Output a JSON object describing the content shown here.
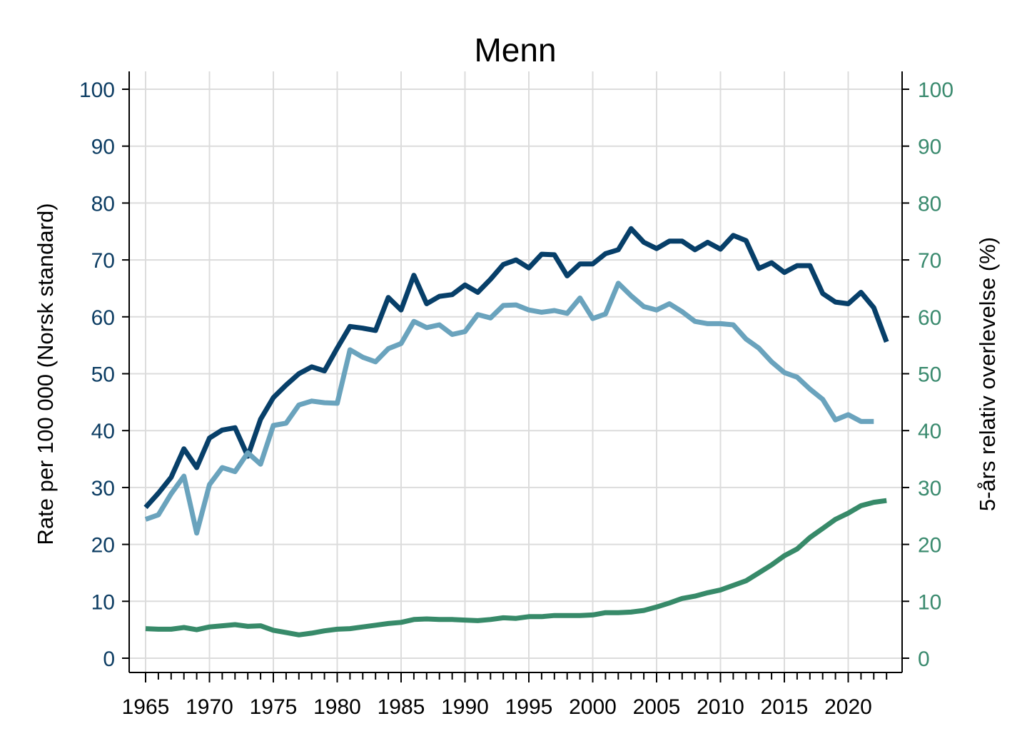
{
  "chart_data": {
    "type": "line",
    "title": "Menn",
    "ylabel_left": "Rate per 100 000 (Norsk standard)",
    "ylabel_right": "5-års relativ overlevelse (%)",
    "xlabel": "",
    "xlim": [
      1965,
      2023
    ],
    "ylim_left": [
      0,
      100
    ],
    "ylim_right": [
      0,
      100
    ],
    "grid": true,
    "x_ticks": [
      "1965",
      "1970",
      "1975",
      "1980",
      "1985",
      "1990",
      "1995",
      "2000",
      "2005",
      "2010",
      "2015",
      "2020"
    ],
    "y_ticks_left": [
      "0",
      "10",
      "20",
      "30",
      "40",
      "50",
      "60",
      "70",
      "80",
      "90",
      "100"
    ],
    "y_ticks_right": [
      "0",
      "10",
      "20",
      "30",
      "40",
      "50",
      "60",
      "70",
      "80",
      "90",
      "100"
    ],
    "colors": {
      "left_axis_text": "#0d3d63",
      "right_axis_text": "#3a8a6e",
      "grid": "#dcdcdc"
    },
    "series": [
      {
        "axis": "left",
        "color": "#073f69",
        "x": [
          1965,
          1966,
          1967,
          1968,
          1969,
          1970,
          1971,
          1972,
          1973,
          1974,
          1975,
          1976,
          1977,
          1978,
          1979,
          1980,
          1981,
          1982,
          1983,
          1984,
          1985,
          1986,
          1987,
          1988,
          1989,
          1990,
          1991,
          1992,
          1993,
          1994,
          1995,
          1996,
          1997,
          1998,
          1999,
          2000,
          2001,
          2002,
          2003,
          2004,
          2005,
          2006,
          2007,
          2008,
          2009,
          2010,
          2011,
          2012,
          2013,
          2014,
          2015,
          2016,
          2017,
          2018,
          2019,
          2020,
          2021,
          2022,
          2023
        ],
        "values": [
          26.5,
          29.0,
          31.8,
          36.8,
          33.5,
          38.7,
          40.1,
          40.5,
          35.5,
          42.0,
          45.8,
          48.0,
          50.0,
          51.2,
          50.5,
          54.5,
          58.3,
          58.0,
          57.6,
          63.4,
          61.2,
          67.3,
          62.3,
          63.6,
          63.9,
          65.6,
          64.3,
          66.6,
          69.2,
          70.0,
          68.6,
          71.0,
          70.9,
          67.2,
          69.3,
          69.3,
          71.1,
          71.8,
          75.5,
          73.1,
          72.0,
          73.3,
          73.3,
          71.8,
          73.1,
          71.9,
          74.3,
          73.4,
          68.5,
          69.5,
          67.8,
          69.0,
          69.0,
          64.1,
          62.6,
          62.3,
          64.3,
          61.6,
          55.6
        ]
      },
      {
        "axis": "left",
        "color": "#6aa3bd",
        "x": [
          1965,
          1966,
          1967,
          1968,
          1969,
          1970,
          1971,
          1972,
          1973,
          1974,
          1975,
          1976,
          1977,
          1978,
          1979,
          1980,
          1981,
          1982,
          1983,
          1984,
          1985,
          1986,
          1987,
          1988,
          1989,
          1990,
          1991,
          1992,
          1993,
          1994,
          1995,
          1996,
          1997,
          1998,
          1999,
          2000,
          2001,
          2002,
          2003,
          2004,
          2005,
          2006,
          2007,
          2008,
          2009,
          2010,
          2011,
          2012,
          2013,
          2014,
          2015,
          2016,
          2017,
          2018,
          2019,
          2020,
          2021,
          2022
        ],
        "values": [
          24.4,
          25.2,
          28.9,
          32.0,
          22.0,
          30.5,
          33.5,
          32.8,
          36.1,
          34.1,
          40.9,
          41.3,
          44.5,
          45.2,
          44.9,
          44.8,
          54.2,
          52.9,
          52.1,
          54.4,
          55.3,
          59.2,
          58.1,
          58.6,
          56.9,
          57.4,
          60.4,
          59.8,
          62.0,
          62.1,
          61.2,
          60.8,
          61.1,
          60.6,
          63.3,
          59.7,
          60.5,
          65.9,
          63.7,
          61.8,
          61.2,
          62.3,
          60.9,
          59.2,
          58.8,
          58.8,
          58.6,
          56.1,
          54.5,
          52.1,
          50.2,
          49.4,
          47.3,
          45.5,
          41.9,
          42.8,
          41.6,
          41.6
        ]
      },
      {
        "axis": "right",
        "color": "#378a69",
        "x": [
          1965,
          1966,
          1967,
          1968,
          1969,
          1970,
          1971,
          1972,
          1973,
          1974,
          1975,
          1976,
          1977,
          1978,
          1979,
          1980,
          1981,
          1982,
          1983,
          1984,
          1985,
          1986,
          1987,
          1988,
          1989,
          1990,
          1991,
          1992,
          1993,
          1994,
          1995,
          1996,
          1997,
          1998,
          1999,
          2000,
          2001,
          2002,
          2003,
          2004,
          2005,
          2006,
          2007,
          2008,
          2009,
          2010,
          2011,
          2012,
          2013,
          2014,
          2015,
          2016,
          2017,
          2018,
          2019,
          2020,
          2021,
          2022,
          2023
        ],
        "values": [
          5.2,
          5.1,
          5.1,
          5.4,
          5.0,
          5.5,
          5.7,
          5.9,
          5.6,
          5.7,
          4.9,
          4.5,
          4.1,
          4.4,
          4.8,
          5.1,
          5.2,
          5.5,
          5.8,
          6.1,
          6.3,
          6.8,
          6.9,
          6.8,
          6.8,
          6.7,
          6.6,
          6.8,
          7.1,
          7.0,
          7.3,
          7.3,
          7.5,
          7.5,
          7.5,
          7.6,
          8.0,
          8.0,
          8.1,
          8.4,
          9.0,
          9.7,
          10.5,
          10.9,
          11.5,
          12.0,
          12.8,
          13.6,
          15.0,
          16.4,
          18.0,
          19.2,
          21.2,
          22.8,
          24.4,
          25.5,
          26.8,
          27.4,
          27.7
        ]
      }
    ]
  }
}
